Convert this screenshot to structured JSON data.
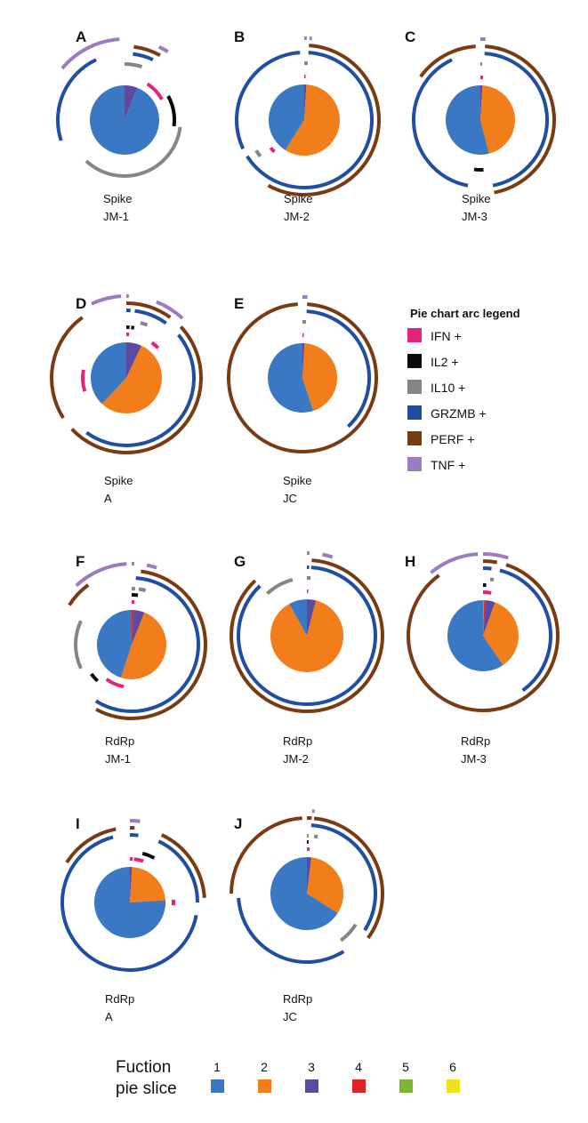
{
  "chart_data": {
    "type": "pie",
    "arc_legend": {
      "title": "Pie chart arc legend",
      "items": [
        {
          "key": "IFN",
          "label": "IFN +",
          "color": "#e4237c"
        },
        {
          "key": "IL2",
          "label": "IL2 +",
          "color": "#0a0a0a"
        },
        {
          "key": "IL10",
          "label": "IL10 +",
          "color": "#858585"
        },
        {
          "key": "GRZMB",
          "label": "GRZMB +",
          "color": "#1f4ea3"
        },
        {
          "key": "PERF",
          "label": "PERF +",
          "color": "#7b3b12"
        },
        {
          "key": "TNF",
          "label": "TNF +",
          "color": "#9d7bc0"
        }
      ]
    },
    "function_legend": {
      "title_line1": "Fuction",
      "title_line2": "pie slice",
      "items": [
        {
          "label": "1",
          "color": "#3a78c4"
        },
        {
          "label": "2",
          "color": "#f17e1b"
        },
        {
          "label": "3",
          "color": "#5a4aa0"
        },
        {
          "label": "4",
          "color": "#e02424"
        },
        {
          "label": "5",
          "color": "#7cb82e"
        },
        {
          "label": "6",
          "color": "#eee21c"
        }
      ]
    },
    "panels": [
      {
        "id": "A",
        "line1": "Spike",
        "line2": "JM-1",
        "slices": [
          0.06,
          0,
          0.94
        ],
        "slice_order": [
          3,
          2,
          1
        ],
        "arcs": {
          "IFN": [
            [
              0.09,
              0.17
            ]
          ],
          "IL2": [
            [
              0.17,
              0.27
            ]
          ],
          "IL10": [
            [
              0.0,
              0.01
            ],
            [
              0.01,
              0.05
            ],
            [
              0.27,
              0.62
            ]
          ],
          "GRZMB": [
            [
              0.02,
              0.07
            ],
            [
              0.7,
              0.93
            ]
          ],
          "PERF": [
            [
              0.02,
              0.08
            ]
          ],
          "TNF": [
            [
              0.86,
              0.99
            ],
            [
              0.07,
              0.09
            ]
          ]
        }
      },
      {
        "id": "B",
        "line1": "Spike",
        "line2": "JM-2",
        "slices": [
          0.01,
          0.58,
          0.41
        ],
        "slice_order": [
          3,
          2,
          1
        ],
        "arcs": {
          "IFN": [
            [
              0.0,
              0.005
            ],
            [
              0.62,
              0.64
            ]
          ],
          "IL2": [],
          "IL10": [
            [
              0.0,
              0.01
            ],
            [
              0.64,
              0.66
            ]
          ],
          "GRZMB": [
            [
              0.01,
              0.66
            ],
            [
              0.68,
              0.99
            ]
          ],
          "PERF": [
            [
              0.01,
              0.58
            ]
          ],
          "TNF": [
            [
              0.0,
              0.005
            ],
            [
              0.01,
              0.015
            ]
          ]
        }
      },
      {
        "id": "C",
        "line1": "Spike",
        "line2": "JM-3",
        "slices": [
          0.01,
          0.45,
          0.54
        ],
        "slice_order": [
          3,
          2,
          1
        ],
        "arcs": {
          "IFN": [
            [
              0.0,
              0.01
            ]
          ],
          "IL2": [
            [
              0.49,
              0.52
            ]
          ],
          "IL10": [
            [
              0.0,
              0.005
            ]
          ],
          "GRZMB": [
            [
              0.01,
              0.47
            ],
            [
              0.53,
              0.93
            ]
          ],
          "PERF": [
            [
              0.01,
              0.47
            ],
            [
              0.85,
              0.99
            ]
          ],
          "TNF": [
            [
              0.0,
              0.01
            ]
          ]
        }
      },
      {
        "id": "D",
        "line1": "Spike",
        "line2": "A",
        "slices": [
          0.07,
          0.55,
          0.38
        ],
        "slice_order": [
          3,
          2,
          1
        ],
        "arcs": {
          "IFN": [
            [
              0.0,
              0.01
            ],
            [
              0.1,
              0.13
            ],
            [
              0.7,
              0.78
            ]
          ],
          "IL2": [
            [
              0.0,
              0.01
            ],
            [
              0.015,
              0.025
            ]
          ],
          "IL10": [
            [
              0.04,
              0.06
            ]
          ],
          "GRZMB": [
            [
              0.0,
              0.01
            ],
            [
              0.02,
              0.1
            ],
            [
              0.14,
              0.6
            ]
          ],
          "PERF": [
            [
              0.0,
              0.1
            ],
            [
              0.13,
              0.63
            ],
            [
              0.66,
              0.9
            ]
          ],
          "TNF": [
            [
              0.93,
              0.99
            ],
            [
              0.0,
              0.005
            ],
            [
              0.06,
              0.12
            ]
          ]
        }
      },
      {
        "id": "E",
        "line1": "Spike",
        "line2": "JC",
        "slices": [
          0.01,
          0.44,
          0.55
        ],
        "slice_order": [
          3,
          2,
          1
        ],
        "arcs": {
          "IFN": [
            [
              0.0,
              0.005
            ]
          ],
          "IL2": [],
          "IL10": [
            [
              0.0,
              0.01
            ]
          ],
          "GRZMB": [
            [
              0.01,
              0.38
            ]
          ],
          "PERF": [
            [
              0.01,
              0.99
            ]
          ],
          "TNF": [
            [
              0.0,
              0.01
            ]
          ]
        }
      },
      {
        "id": "F",
        "line1": "RdRp",
        "line2": "JM-1",
        "slices": [
          0.01,
          0.05,
          0.49,
          0.45
        ],
        "slice_order": [
          4,
          3,
          2,
          1
        ],
        "arcs": {
          "IFN": [
            [
              0.0,
              0.01
            ],
            [
              0.53,
              0.6
            ]
          ],
          "IL2": [
            [
              0.0,
              0.02
            ],
            [
              0.62,
              0.65
            ]
          ],
          "IL10": [
            [
              0.0,
              0.01
            ],
            [
              0.02,
              0.04
            ],
            [
              0.68,
              0.82
            ]
          ],
          "GRZMB": [
            [
              0.01,
              0.59
            ]
          ],
          "PERF": [
            [
              0.02,
              0.58
            ],
            [
              0.84,
              0.9
            ]
          ],
          "TNF": [
            [
              0.88,
              0.99
            ],
            [
              0.0,
              0.005
            ],
            [
              0.03,
              0.05
            ]
          ]
        }
      },
      {
        "id": "G",
        "line1": "RdRp",
        "line2": "JM-2",
        "slices": [
          0.04,
          0.88,
          0.08
        ],
        "slice_order": [
          3,
          2,
          1
        ],
        "arcs": {
          "IFN": [
            [
              0.0,
              0.005
            ]
          ],
          "IL2": [],
          "IL10": [
            [
              0.0,
              0.01
            ],
            [
              0.88,
              0.96
            ]
          ],
          "GRZMB": [
            [
              0.0,
              0.005
            ],
            [
              0.01,
              0.88
            ]
          ],
          "PERF": [
            [
              0.01,
              0.88
            ]
          ],
          "TNF": [
            [
              0.0,
              0.005
            ],
            [
              0.03,
              0.05
            ]
          ]
        }
      },
      {
        "id": "H",
        "line1": "RdRp",
        "line2": "JM-3",
        "slices": [
          0.005,
          0.01,
          0.04,
          0.35,
          0.595
        ],
        "slice_order": [
          5,
          4,
          3,
          2,
          1
        ],
        "arcs": {
          "IFN": [
            [
              0.0,
              0.03
            ]
          ],
          "IL2": [
            [
              0.0,
              0.01
            ]
          ],
          "IL10": [
            [
              0.02,
              0.03
            ]
          ],
          "GRZMB": [
            [
              0.0,
              0.02
            ],
            [
              0.04,
              0.4
            ]
          ],
          "PERF": [
            [
              0.0,
              0.03
            ],
            [
              0.05,
              0.9
            ]
          ],
          "TNF": [
            [
              0.89,
              0.99
            ],
            [
              0.0,
              0.05
            ]
          ]
        }
      },
      {
        "id": "I",
        "line1": "RdRp",
        "line2": "A",
        "slices": [
          0.01,
          0.23,
          0.76
        ],
        "slice_order": [
          3,
          2,
          1
        ],
        "arcs": {
          "IFN": [
            [
              0.0,
              0.01
            ],
            [
              0.015,
              0.05
            ],
            [
              0.24,
              0.26
            ]
          ],
          "IL2": [
            [
              0.04,
              0.08
            ]
          ],
          "IL10": [],
          "GRZMB": [
            [
              0.0,
              0.02
            ],
            [
              0.07,
              0.25
            ],
            [
              0.28,
              0.96
            ]
          ],
          "PERF": [
            [
              0.0,
              0.01
            ],
            [
              0.07,
              0.24
            ],
            [
              0.84,
              0.97
            ]
          ],
          "TNF": [
            [
              0.0,
              0.02
            ]
          ]
        }
      },
      {
        "id": "J",
        "line1": "RdRp",
        "line2": "JC",
        "slices": [
          0.02,
          0.32,
          0.66
        ],
        "slice_order": [
          3,
          2,
          1
        ],
        "arcs": {
          "IFN": [
            [
              0.0,
              0.01
            ]
          ],
          "IL2": [
            [
              0.0,
              0.005
            ]
          ],
          "IL10": [
            [
              0.0,
              0.005
            ],
            [
              0.02,
              0.03
            ],
            [
              0.34,
              0.4
            ]
          ],
          "GRZMB": [
            [
              0.01,
              0.34
            ],
            [
              0.41,
              0.74
            ]
          ],
          "PERF": [
            [
              0.0,
              0.01
            ],
            [
              0.015,
              0.35
            ],
            [
              0.75,
              0.99
            ]
          ],
          "TNF": [
            [
              0.01,
              0.015
            ]
          ]
        }
      }
    ]
  }
}
